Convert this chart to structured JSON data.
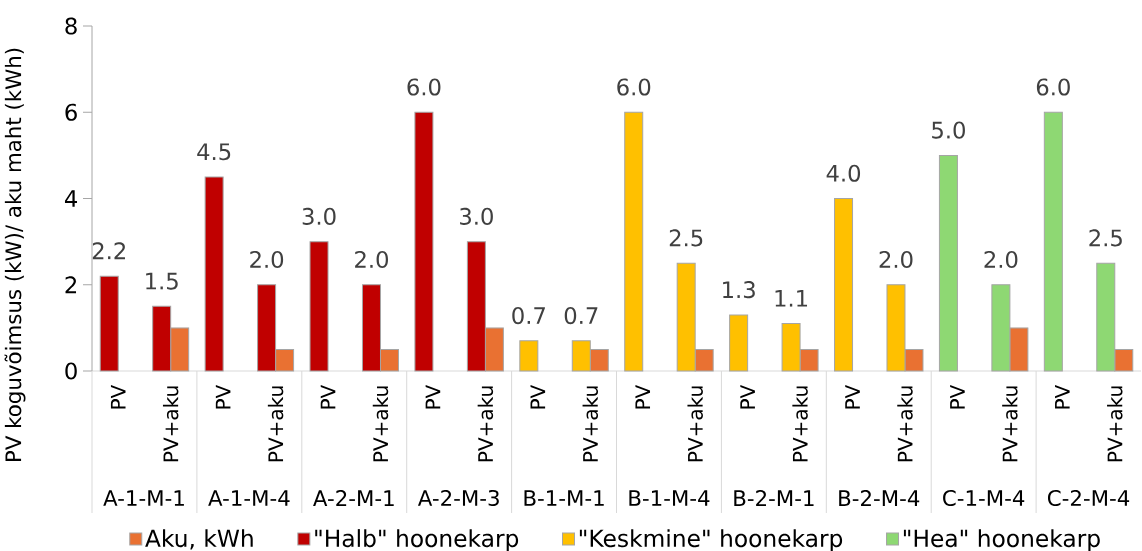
{
  "chart_data": {
    "type": "bar",
    "ylabel": "PV koguvõimsus (kW)/ aku maht (kWh)",
    "categories": [
      "PV",
      "PV+aku",
      "PV",
      "PV+aku",
      "PV",
      "PV+aku",
      "PV",
      "PV+aku",
      "PV",
      "PV+aku",
      "PV",
      "PV+aku",
      "PV",
      "PV+aku",
      "PV",
      "PV+aku",
      "PV",
      "PV+aku",
      "PV",
      "PV+aku"
    ],
    "annotations": [
      "A-1-M-1",
      "A-1-M-4",
      "A-2-M-1",
      "A-2-M-3",
      "B-1-M-1",
      "B-1-M-4",
      "B-2-M-1",
      "B-2-M-4",
      "C-1-M-4",
      "C-2-M-4"
    ],
    "series": [
      {
        "name": "Aku, kWh",
        "color": "#E97132",
        "values": [
          null,
          1.0,
          null,
          0.5,
          null,
          0.5,
          null,
          1.0,
          null,
          0.5,
          null,
          0.5,
          null,
          0.5,
          null,
          0.5,
          null,
          1.0,
          null,
          0.5
        ]
      },
      {
        "name": "\"Halb\" hoonekarp",
        "color": "#C00000",
        "values": [
          2.2,
          1.5,
          4.5,
          2.0,
          3.0,
          2.0,
          6.0,
          3.0,
          null,
          null,
          null,
          null,
          null,
          null,
          null,
          null,
          null,
          null,
          null,
          null
        ],
        "value_labels": [
          "2.2",
          "1.5",
          "4.5",
          "2.0",
          "3.0",
          "2.0",
          "6.0",
          "3.0",
          null,
          null,
          null,
          null,
          null,
          null,
          null,
          null,
          null,
          null,
          null,
          null
        ]
      },
      {
        "name": "\"Keskmine\" hoonekarp",
        "color": "#FFC000",
        "values": [
          null,
          null,
          null,
          null,
          null,
          null,
          null,
          null,
          0.7,
          0.7,
          6.0,
          2.5,
          1.3,
          1.1,
          4.0,
          2.0,
          null,
          null,
          null,
          null
        ],
        "value_labels": [
          null,
          null,
          null,
          null,
          null,
          null,
          null,
          null,
          "0.7",
          "0.7",
          "6.0",
          "2.5",
          "1.3",
          "1.1",
          "4.0",
          "2.0",
          null,
          null,
          null,
          null
        ]
      },
      {
        "name": "\"Hea\" hoonekarp",
        "color": "#8ED873",
        "values": [
          null,
          null,
          null,
          null,
          null,
          null,
          null,
          null,
          null,
          null,
          null,
          null,
          null,
          null,
          null,
          null,
          5.0,
          2.0,
          6.0,
          2.5
        ],
        "value_labels": [
          null,
          null,
          null,
          null,
          null,
          null,
          null,
          null,
          null,
          null,
          null,
          null,
          null,
          null,
          null,
          null,
          "5.0",
          "2.0",
          "6.0",
          "2.5"
        ]
      }
    ],
    "ylim": [
      0,
      8
    ],
    "yticks": [
      0,
      2,
      4,
      6,
      8
    ],
    "legend": "bottom"
  }
}
